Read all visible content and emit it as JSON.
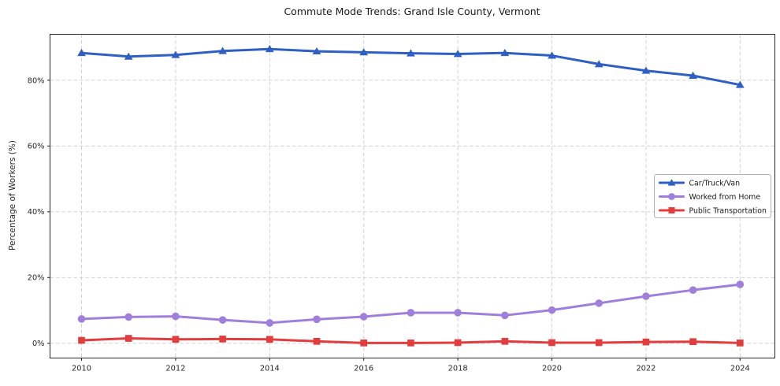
{
  "title": "Commute Mode Trends: Grand Isle County, Vermont",
  "chart_data": {
    "type": "line",
    "x": [
      2010,
      2011,
      2012,
      2013,
      2014,
      2015,
      2016,
      2017,
      2018,
      2019,
      2020,
      2021,
      2022,
      2023,
      2024
    ],
    "series": [
      {
        "name": "Car/Truck/Van",
        "marker": "triangle",
        "color": "#2d5fc4",
        "values": [
          88.3,
          87.2,
          87.7,
          88.9,
          89.5,
          88.8,
          88.5,
          88.2,
          88.0,
          88.3,
          87.5,
          84.9,
          82.9,
          81.4,
          78.6
        ]
      },
      {
        "name": "Worked from Home",
        "marker": "circle",
        "color": "#a07edb",
        "values": [
          7.4,
          8.0,
          8.2,
          7.1,
          6.2,
          7.3,
          8.1,
          9.3,
          9.3,
          8.5,
          10.1,
          12.2,
          14.3,
          16.2,
          17.9
        ]
      },
      {
        "name": "Public Transportation",
        "marker": "square",
        "color": "#e23c3c",
        "values": [
          0.9,
          1.5,
          1.2,
          1.3,
          1.2,
          0.6,
          0.1,
          0.1,
          0.2,
          0.6,
          0.2,
          0.2,
          0.4,
          0.5,
          0.1
        ]
      }
    ],
    "xlabel": "",
    "ylabel": "Percentage of Workers (%)",
    "xticks": [
      2010,
      2012,
      2014,
      2016,
      2018,
      2020,
      2022,
      2024
    ],
    "xtick_labels": [
      "2010",
      "2012",
      "2014",
      "2016",
      "2018",
      "2020",
      "2022",
      "2024"
    ],
    "yticks": [
      0,
      20,
      40,
      60,
      80
    ],
    "ytick_labels": [
      "0%",
      "20%",
      "40%",
      "60%",
      "80%"
    ],
    "xlim": [
      2009.33,
      2024.74
    ],
    "ylim": [
      -4.48,
      93.98
    ],
    "grid": true,
    "grid_style": "dashed",
    "legend_position": "center-right"
  },
  "colors": {
    "background": "#ffffff",
    "spine": "#262626",
    "grid": "#cccccc",
    "tick_label": "#262626",
    "legend_border": "#b3b3b3",
    "legend_background": "#ffffff"
  }
}
